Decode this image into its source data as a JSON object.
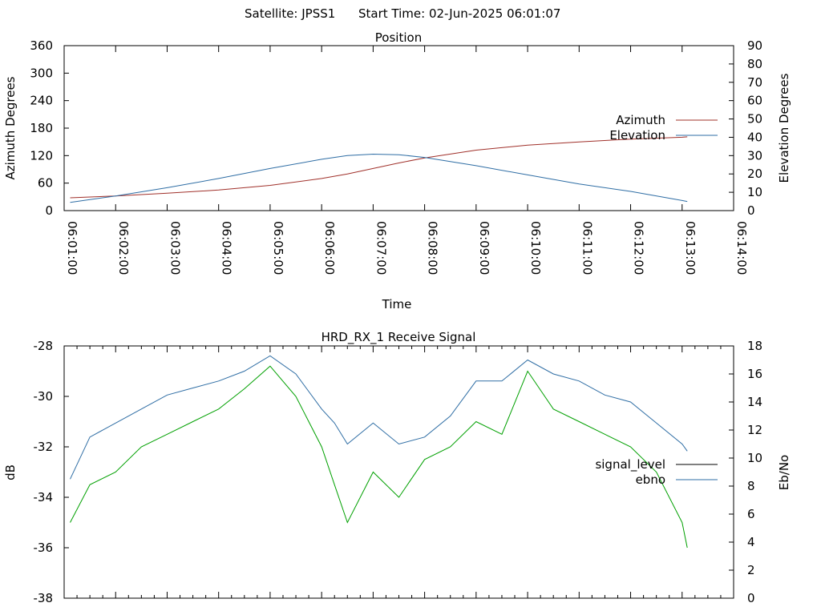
{
  "header": {
    "satellite_label": "Satellite: JPSS1",
    "start_time_label": "Start Time: 02-Jun-2025 06:01:07"
  },
  "chart_data": [
    {
      "type": "line",
      "title": "Position",
      "xlabel": "Time",
      "ylabel_left": "Azimuth Degrees",
      "ylabel_right": "Elevation Degrees",
      "x_range": [
        "06:01:00",
        "06:14:00"
      ],
      "x_tick_labels": [
        "06:01:00",
        "06:02:00",
        "06:03:00",
        "06:04:00",
        "06:05:00",
        "06:06:00",
        "06:07:00",
        "06:08:00",
        "06:09:00",
        "06:10:00",
        "06:11:00",
        "06:12:00",
        "06:13:00",
        "06:14:00"
      ],
      "ylim_left": [
        0,
        360
      ],
      "y_ticks_left": [
        "0",
        "60",
        "120",
        "180",
        "240",
        "300",
        "360"
      ],
      "ylim_right": [
        0,
        90
      ],
      "y_ticks_right": [
        "0",
        "10",
        "20",
        "30",
        "40",
        "50",
        "60",
        "70",
        "80",
        "90"
      ],
      "legend_position": "right",
      "series": [
        {
          "name": "Azimuth",
          "axis": "left",
          "color": "#a0302a",
          "x": [
            "06:01:07",
            "06:02:00",
            "06:03:00",
            "06:04:00",
            "06:05:00",
            "06:06:00",
            "06:06:30",
            "06:07:00",
            "06:07:30",
            "06:08:00",
            "06:09:00",
            "06:10:00",
            "06:11:00",
            "06:12:00",
            "06:13:00",
            "06:13:06"
          ],
          "y": [
            28,
            32,
            38,
            45,
            55,
            70,
            80,
            92,
            104,
            115,
            132,
            143,
            150,
            156,
            160,
            161
          ]
        },
        {
          "name": "Elevation",
          "axis": "right",
          "color": "#2e6da4",
          "x": [
            "06:01:07",
            "06:02:00",
            "06:03:00",
            "06:04:00",
            "06:05:00",
            "06:06:00",
            "06:06:30",
            "06:07:00",
            "06:07:30",
            "06:08:00",
            "06:09:00",
            "06:10:00",
            "06:11:00",
            "06:12:00",
            "06:13:00",
            "06:13:06"
          ],
          "y": [
            4.5,
            8,
            12.5,
            17.5,
            23,
            28,
            30,
            30.8,
            30.5,
            29,
            24.5,
            19.5,
            14.5,
            10.5,
            5.5,
            5
          ]
        }
      ]
    },
    {
      "type": "line",
      "title": "HRD_RX_1 Receive Signal",
      "xlabel": "",
      "ylabel_left": "dB",
      "ylabel_right": "Eb/No",
      "x_range": [
        "06:01:00",
        "06:14:00"
      ],
      "ylim_left": [
        -38,
        -28
      ],
      "y_ticks_left": [
        "-38",
        "-36",
        "-34",
        "-32",
        "-30",
        "-28"
      ],
      "ylim_right": [
        0,
        18
      ],
      "y_ticks_right": [
        "0",
        "2",
        "4",
        "6",
        "8",
        "10",
        "12",
        "14",
        "16",
        "18"
      ],
      "legend_position": "right",
      "series": [
        {
          "name": "signal_level",
          "axis": "left",
          "color": "#000000",
          "legend_color": "#000000",
          "x": [],
          "y": []
        },
        {
          "name": "ebno",
          "axis": "right",
          "color": "#2e6da4",
          "x": [
            "06:01:07",
            "06:01:30",
            "06:02:00",
            "06:02:30",
            "06:03:00",
            "06:03:30",
            "06:04:00",
            "06:04:30",
            "06:05:00",
            "06:05:30",
            "06:06:00",
            "06:06:15",
            "06:06:30",
            "06:07:00",
            "06:07:30",
            "06:08:00",
            "06:08:30",
            "06:09:00",
            "06:09:30",
            "06:10:00",
            "06:10:30",
            "06:11:00",
            "06:11:30",
            "06:12:00",
            "06:12:30",
            "06:13:00",
            "06:13:06"
          ],
          "y": [
            8.5,
            11.5,
            12.5,
            13.5,
            14.5,
            15,
            15.5,
            16.2,
            17.3,
            16,
            13.5,
            12.5,
            11,
            12.5,
            11,
            11.5,
            13,
            15.5,
            15.5,
            17,
            16,
            15.5,
            14.5,
            14,
            12.5,
            11,
            10.5
          ]
        },
        {
          "name": "",
          "axis": "left",
          "color": "#00a000",
          "x": [
            "06:01:07",
            "06:01:30",
            "06:02:00",
            "06:02:30",
            "06:03:00",
            "06:03:30",
            "06:04:00",
            "06:04:30",
            "06:05:00",
            "06:05:30",
            "06:06:00",
            "06:06:15",
            "06:06:30",
            "06:07:00",
            "06:07:30",
            "06:08:00",
            "06:08:30",
            "06:09:00",
            "06:09:30",
            "06:10:00",
            "06:10:30",
            "06:11:00",
            "06:11:30",
            "06:12:00",
            "06:12:30",
            "06:13:00",
            "06:13:06"
          ],
          "y": [
            -35,
            -33.5,
            -33,
            -32,
            -31.5,
            -31,
            -30.5,
            -29.7,
            -28.8,
            -30,
            -32,
            -33.5,
            -35,
            -33,
            -34,
            -32.5,
            -32,
            -31,
            -31.5,
            -29,
            -30.5,
            -31,
            -31.5,
            -32,
            -33,
            -35,
            -36
          ]
        }
      ]
    }
  ]
}
